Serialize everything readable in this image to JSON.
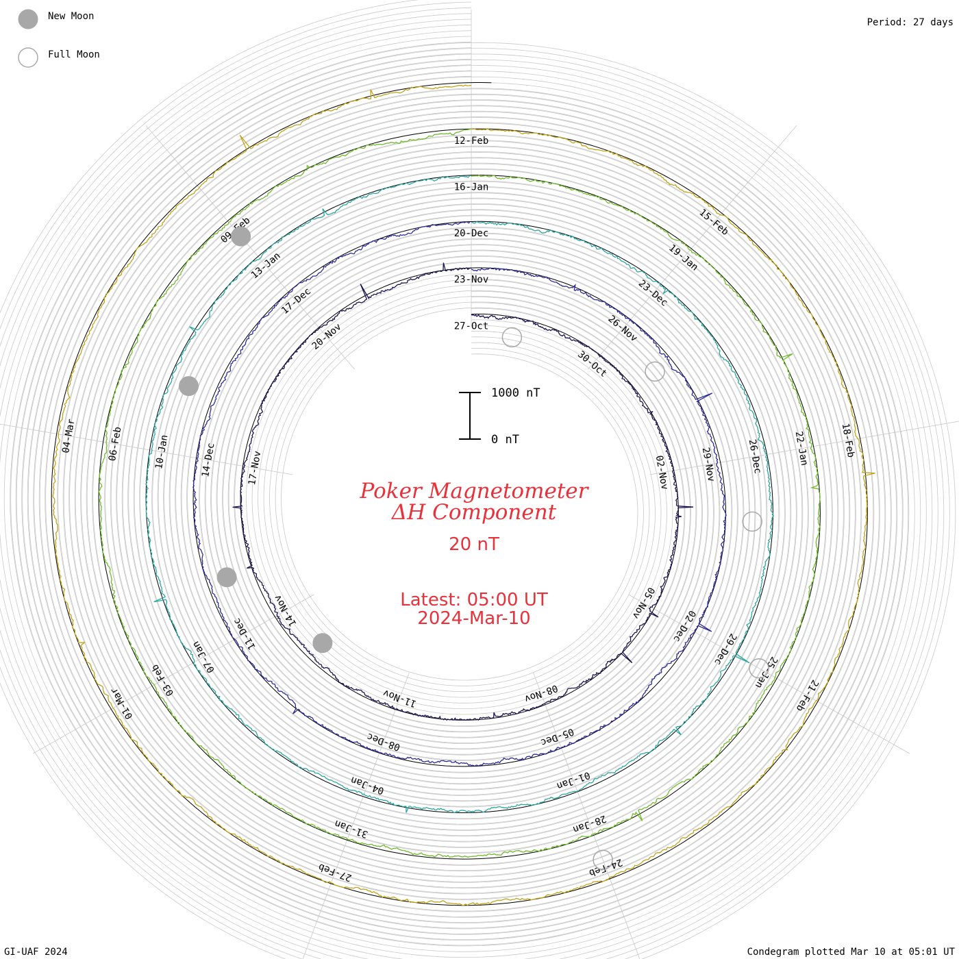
{
  "header": {
    "new_moon_label": "New Moon",
    "full_moon_label": "Full Moon",
    "period_label": "Period: 27 days"
  },
  "center": {
    "title_line1": "Poker Magnetometer",
    "title_line2": "ΔH Component",
    "units": "20 nT",
    "latest_line1": "Latest: 05:00 UT",
    "latest_line2": "2024-Mar-10",
    "scale_top_label": "1000 nT",
    "scale_bottom_label": "0 nT"
  },
  "footer": {
    "credit": "GI-UAF 2024",
    "plotted": "Condegram plotted Mar 10 at 05:01 UT"
  },
  "colors": {
    "grid": "#c8c8c8",
    "baseline": "#000000",
    "title": "#e8313a",
    "moon_new": "#a8a8a8",
    "moon_full": "#a8a8a8"
  },
  "chart_data": {
    "type": "line",
    "subtype": "polar condegram (spiral, one revolution per period)",
    "period_days": 27,
    "title": "Poker Magnetometer ΔH Component",
    "ylabel": "20 nT",
    "scale_bar_nT": [
      0,
      1000
    ],
    "start_date": "2023-Oct-27",
    "end": "2024-Mar-10 05:00 UT",
    "rotation_direction": "clockwise",
    "rings": [
      {
        "rotation": 1,
        "color": "#1a1450",
        "dates": [
          "27-Oct",
          "30-Oct",
          "02-Nov",
          "05-Nov",
          "08-Nov",
          "11-Nov",
          "14-Nov",
          "17-Nov",
          "20-Nov"
        ]
      },
      {
        "rotation": 2,
        "color": "#2b2a9a",
        "dates": [
          "23-Nov",
          "26-Nov",
          "29-Nov",
          "02-Dec",
          "05-Dec",
          "08-Dec",
          "11-Dec",
          "14-Dec",
          "17-Dec"
        ]
      },
      {
        "rotation": 3,
        "color": "#2aa7a0",
        "dates": [
          "20-Dec",
          "23-Dec",
          "26-Dec",
          "29-Dec",
          "01-Jan",
          "04-Jan",
          "07-Jan",
          "10-Jan",
          "13-Jan"
        ]
      },
      {
        "rotation": 4,
        "color": "#6fba2a",
        "dates": [
          "16-Jan",
          "19-Jan",
          "22-Jan",
          "25-Jan",
          "28-Jan",
          "31-Jan",
          "03-Feb",
          "06-Feb",
          "09-Feb"
        ]
      },
      {
        "rotation": 5,
        "color": "#c2a216",
        "dates": [
          "12-Feb",
          "15-Feb",
          "18-Feb",
          "21-Feb",
          "24-Feb",
          "27-Feb",
          "01-Mar",
          "04-Mar"
        ]
      }
    ],
    "moon_phases": [
      {
        "phase": "full",
        "date": "2023-Oct-28"
      },
      {
        "phase": "new",
        "date": "2023-Nov-13"
      },
      {
        "phase": "full",
        "date": "2023-Nov-27"
      },
      {
        "phase": "new",
        "date": "2023-Dec-12"
      },
      {
        "phase": "full",
        "date": "2023-Dec-27"
      },
      {
        "phase": "new",
        "date": "2024-Jan-11"
      },
      {
        "phase": "full",
        "date": "2024-Jan-25"
      },
      {
        "phase": "new",
        "date": "2024-Feb-09"
      },
      {
        "phase": "full",
        "date": "2024-Feb-24"
      }
    ],
    "grid": true,
    "legend": "top-left"
  }
}
